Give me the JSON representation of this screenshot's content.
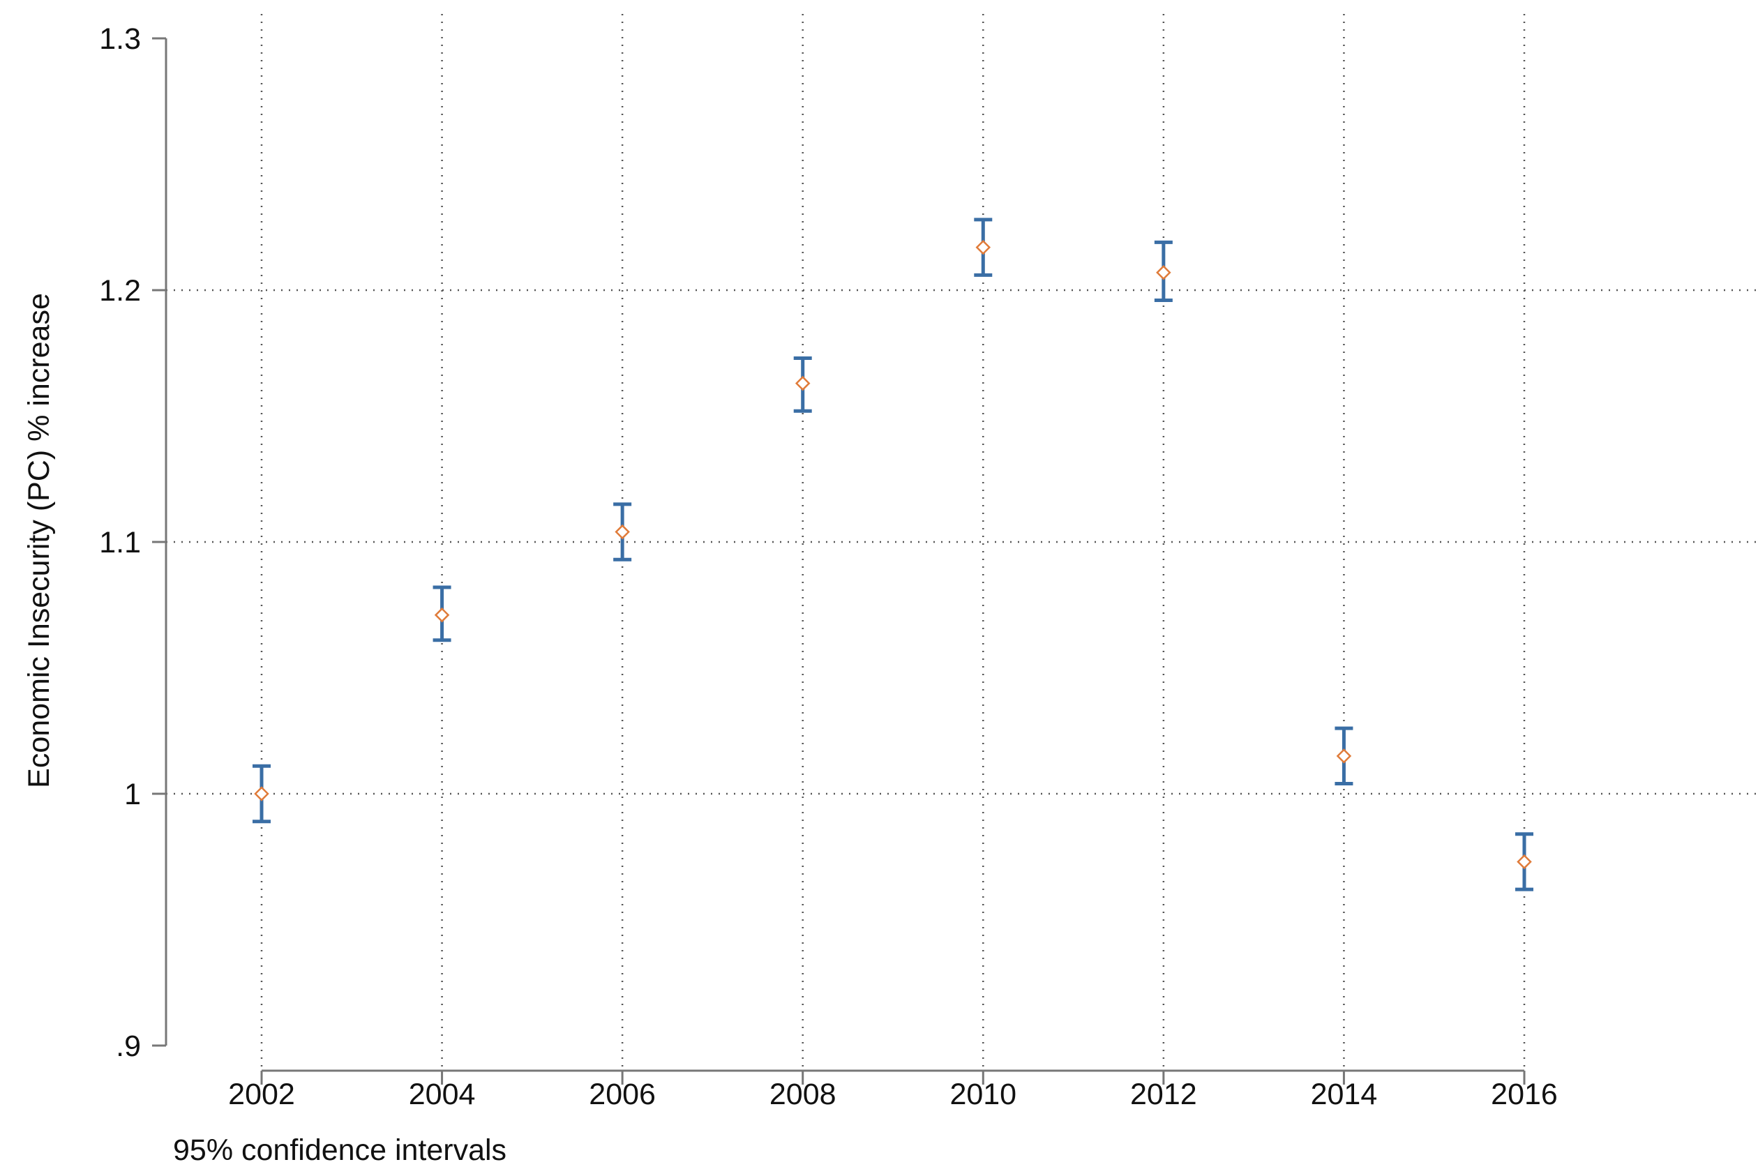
{
  "chart_data": {
    "type": "scatter",
    "title": "",
    "xlabel": "",
    "ylabel": "Economic Insecurity (PC) % increase",
    "note": "95% confidence intervals",
    "x": [
      2002,
      2004,
      2006,
      2008,
      2010,
      2012,
      2014,
      2016
    ],
    "x_tick_labels": [
      "2002",
      "2004",
      "2006",
      "2008",
      "2010",
      "2012",
      "2014",
      "2016"
    ],
    "y_ticks": [
      0.9,
      1.0,
      1.1,
      1.2,
      1.3
    ],
    "y_tick_labels": [
      ".9",
      "1",
      "1.1",
      "1.2",
      "1.3"
    ],
    "xlim": [
      2002,
      2016
    ],
    "ylim": [
      0.9,
      1.3
    ],
    "grid": true,
    "series": [
      {
        "estimate": [
          1.0,
          1.071,
          1.104,
          1.163,
          1.217,
          1.207,
          1.015,
          0.973
        ],
        "ci_lower": [
          0.989,
          1.061,
          1.093,
          1.152,
          1.206,
          1.196,
          1.004,
          0.962
        ],
        "ci_upper": [
          1.011,
          1.082,
          1.115,
          1.173,
          1.228,
          1.219,
          1.026,
          0.984
        ]
      }
    ],
    "colors": {
      "ci": "#3a6ea5",
      "marker": "#e07b39",
      "axis": "#777777",
      "grid": "#555555"
    }
  }
}
